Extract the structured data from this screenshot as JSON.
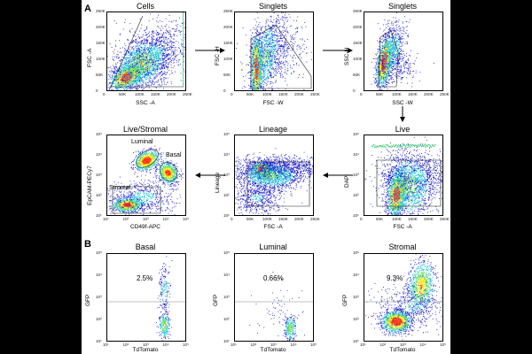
{
  "panel_labels": {
    "a": "A",
    "b": "B"
  },
  "panels": {
    "cells": {
      "title": "Cells",
      "xlabel": "SSC -A",
      "ylabel": "FSC -A"
    },
    "singlets1": {
      "title": "Singlets",
      "xlabel": "FSC -W",
      "ylabel": "FSC -H"
    },
    "singlets2": {
      "title": "Singlets",
      "xlabel": "SSC -W",
      "ylabel": "SSC-H"
    },
    "live": {
      "title": "Live",
      "xlabel": "FSC -A",
      "ylabel": "DAPI"
    },
    "lineage": {
      "title": "Lineage",
      "xlabel": "FSC -A",
      "ylabel": "Lineage"
    },
    "livestromal": {
      "title": "Live/Stromal",
      "xlabel": "CD49f-APC",
      "ylabel": "EpCAM-PECy7",
      "gates": {
        "luminal": "Luminal",
        "basal": "Basal",
        "stromal": "Stromal"
      }
    },
    "basal": {
      "title": "Basal",
      "xlabel": "TdTomato",
      "ylabel": "GFP",
      "percent": "2.5%"
    },
    "luminal": {
      "title": "Luminal",
      "xlabel": "TdTomato",
      "ylabel": "GFP",
      "percent": "0.66%"
    },
    "stromal": {
      "title": "Stromal",
      "xlabel": "TdTomato",
      "ylabel": "GFP",
      "percent": "9.3%"
    }
  },
  "linear_ticks": {
    "y": [
      "250K",
      "200K",
      "150K",
      "100K",
      "50K",
      "0"
    ],
    "x": [
      "0",
      "50K",
      "100K",
      "150K",
      "200K",
      "250K"
    ]
  },
  "log_ticks": {
    "y": [
      "10⁵",
      "10⁴",
      "10³",
      "10²",
      "10¹"
    ],
    "x": [
      "10¹",
      "10²",
      "10³",
      "10⁴",
      "10⁵"
    ]
  },
  "colors": {
    "background": "#000000",
    "figure": "#ffffff",
    "density_low": "#1a1acc",
    "density_mid": "#22c4d8",
    "density_high": "#f7e51f",
    "density_peak": "#ff3b1a"
  }
}
